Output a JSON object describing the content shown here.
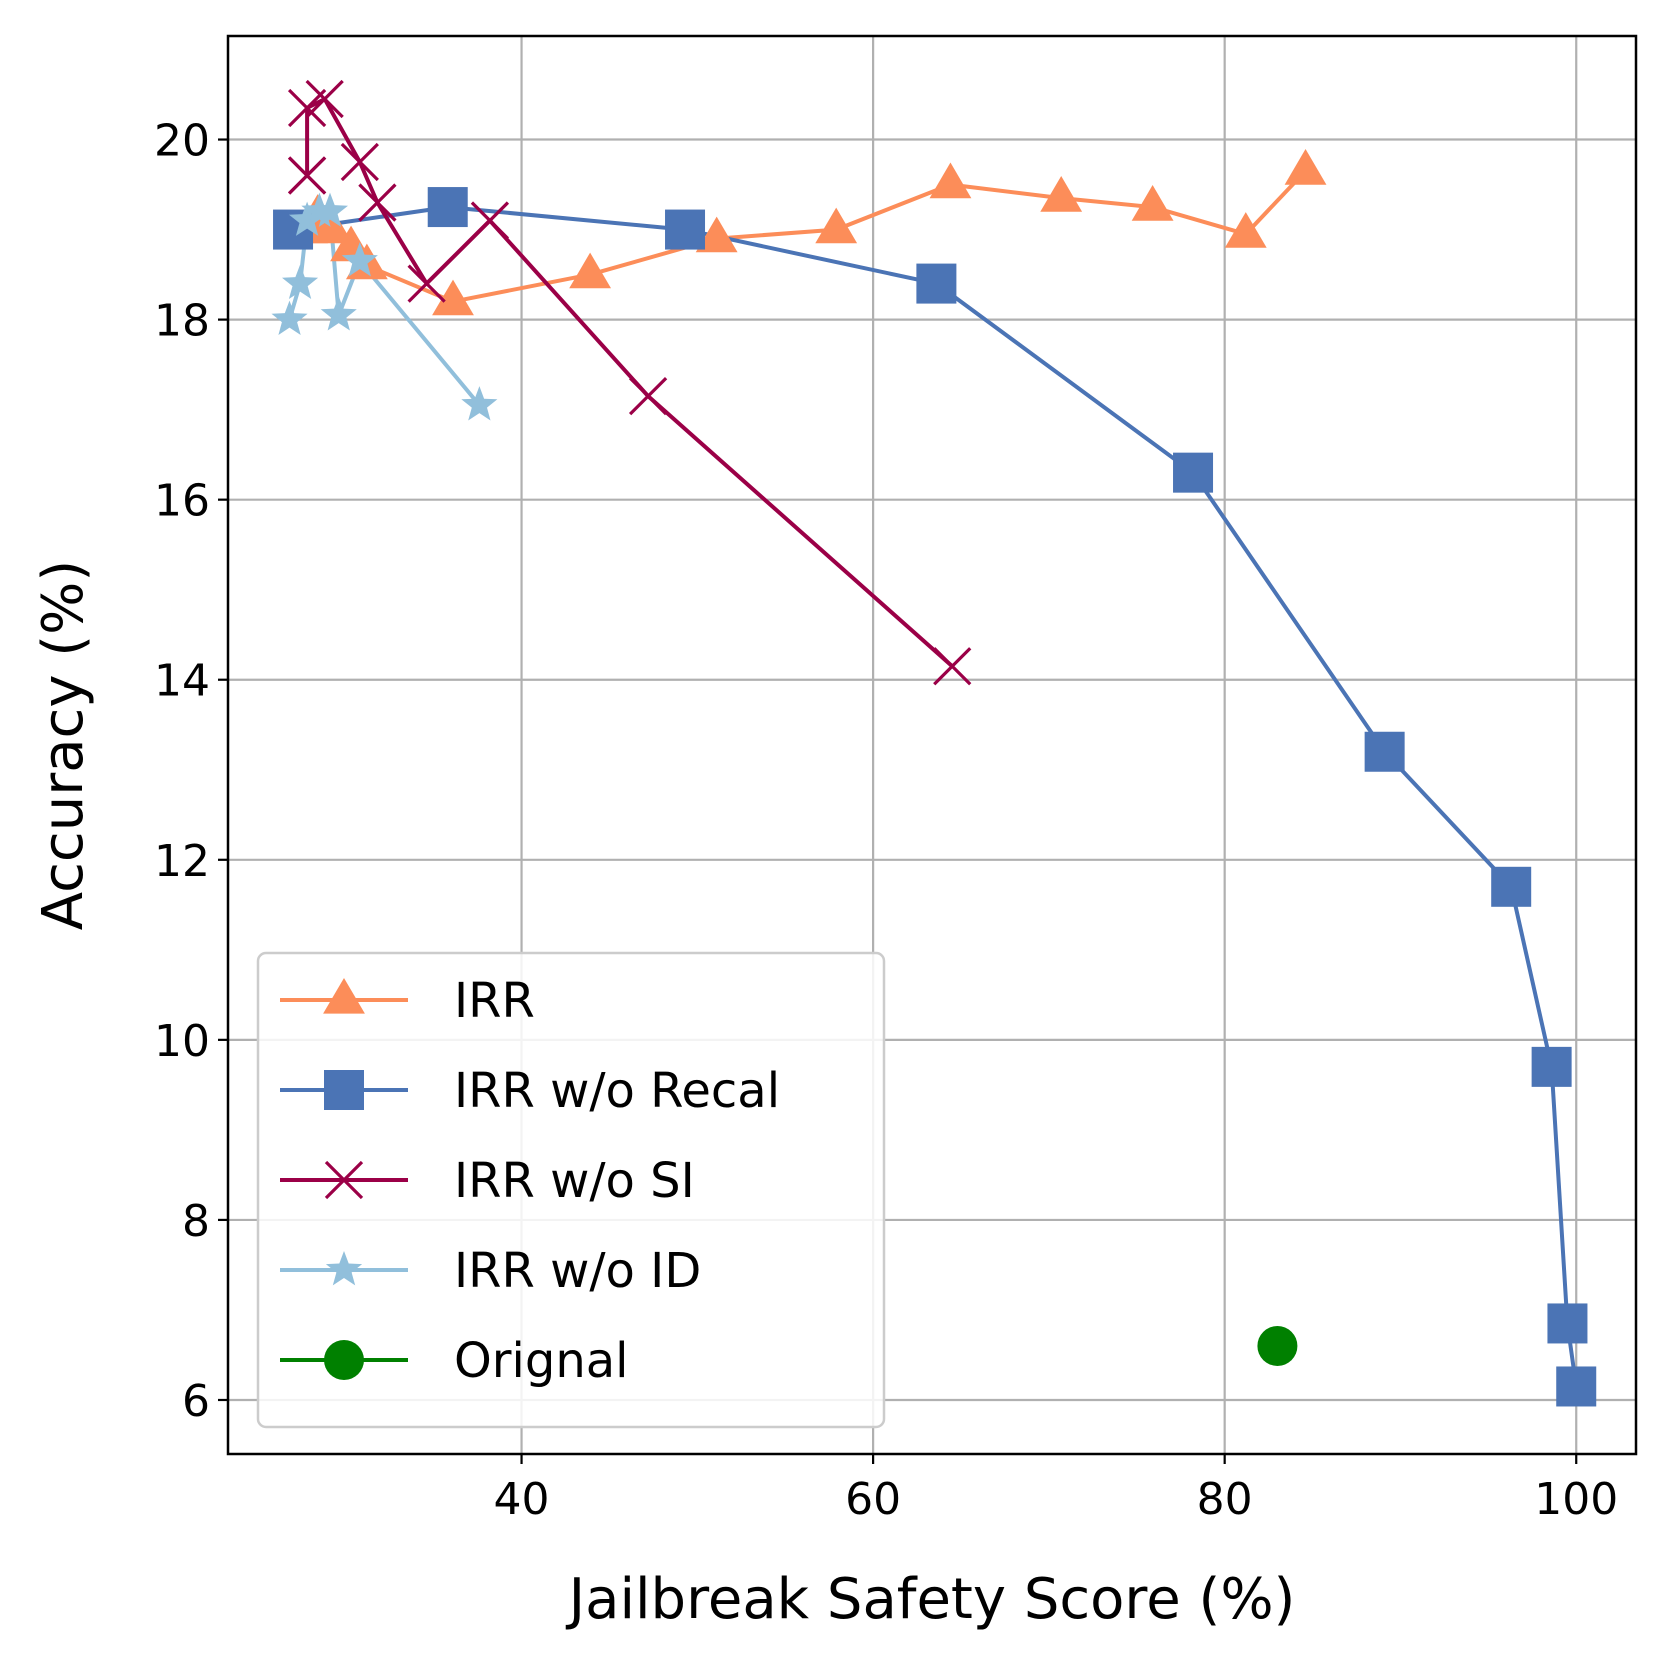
{
  "chart_data": {
    "type": "line",
    "title": "",
    "xlabel": "Jailbreak Safety Score (%)",
    "ylabel": "Accuracy (%)",
    "xlim": [
      23.3,
      103.4
    ],
    "ylim": [
      5.4,
      21.15
    ],
    "xticks": [
      40,
      60,
      80,
      100
    ],
    "yticks": [
      6,
      8,
      10,
      12,
      14,
      16,
      18,
      20
    ],
    "grid": true,
    "legend_position": "lower-left",
    "series": [
      {
        "name": "IRR",
        "color": "#fc8d59",
        "marker": "triangle",
        "x": [
          27.8,
          28.4,
          29.2,
          30.3,
          31.2,
          36.1,
          43.9,
          51.1,
          57.9,
          64.4,
          70.7,
          75.9,
          81.2,
          84.6
        ],
        "y": [
          19.0,
          19.15,
          19.0,
          18.8,
          18.6,
          18.2,
          18.5,
          18.9,
          19.0,
          19.5,
          19.35,
          19.25,
          18.95,
          19.65
        ]
      },
      {
        "name": "IRR w/o Recal",
        "color": "#4b74b5",
        "marker": "square",
        "x": [
          27.0,
          35.8,
          49.3,
          63.6,
          78.2,
          89.1,
          96.3,
          98.6,
          99.5,
          100.0
        ],
        "y": [
          19.0,
          19.25,
          19.0,
          18.4,
          16.3,
          13.2,
          11.7,
          9.7,
          6.85,
          6.15
        ]
      },
      {
        "name": "IRR w/o SI",
        "color": "#9b0047",
        "marker": "x",
        "x": [
          27.8,
          27.8,
          27.8,
          28.8,
          30.8,
          31.8,
          34.6,
          38.2,
          47.2,
          64.5
        ],
        "y": [
          19.6,
          19.6,
          20.35,
          20.45,
          19.75,
          19.3,
          18.4,
          19.1,
          17.15,
          14.15
        ]
      },
      {
        "name": "IRR w/o ID",
        "color": "#91bfdb",
        "marker": "star",
        "x": [
          26.8,
          27.4,
          27.8,
          28.5,
          29.1,
          29.6,
          30.8,
          37.6
        ],
        "y": [
          18.0,
          18.4,
          19.1,
          19.2,
          19.2,
          18.05,
          18.65,
          17.05
        ]
      },
      {
        "name": "Orignal",
        "color": "#008000",
        "marker": "circle",
        "x": [
          83.0
        ],
        "y": [
          6.6
        ]
      }
    ]
  }
}
